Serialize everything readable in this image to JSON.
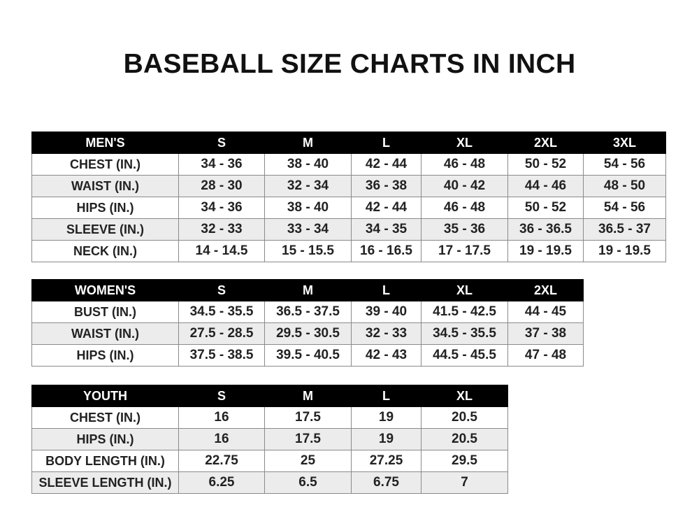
{
  "title": "BASEBALL SIZE CHARTS IN INCH",
  "tables": [
    {
      "headers": [
        "MEN'S",
        "S",
        "M",
        "L",
        "XL",
        "2XL",
        "3XL"
      ],
      "rows": [
        [
          "CHEST (IN.)",
          "34 - 36",
          "38 - 40",
          "42 - 44",
          "46 - 48",
          "50 - 52",
          "54 - 56"
        ],
        [
          "WAIST (IN.)",
          "28 - 30",
          "32 - 34",
          "36 - 38",
          "40 - 42",
          "44 - 46",
          "48 - 50"
        ],
        [
          "HIPS (IN.)",
          "34 - 36",
          "38 - 40",
          "42 - 44",
          "46 - 48",
          "50 - 52",
          "54 - 56"
        ],
        [
          "SLEEVE (IN.)",
          "32 - 33",
          "33 - 34",
          "34 - 35",
          "35 - 36",
          "36 - 36.5",
          "36.5 - 37"
        ],
        [
          "NECK (IN.)",
          "14 - 14.5",
          "15 - 15.5",
          "16 - 16.5",
          "17 - 17.5",
          "19 - 19.5",
          "19 - 19.5"
        ]
      ]
    },
    {
      "headers": [
        "WOMEN'S",
        "S",
        "M",
        "L",
        "XL",
        "2XL"
      ],
      "rows": [
        [
          "BUST (IN.)",
          "34.5 - 35.5",
          "36.5 - 37.5",
          "39 - 40",
          "41.5 - 42.5",
          "44 - 45"
        ],
        [
          "WAIST (IN.)",
          "27.5 - 28.5",
          "29.5 - 30.5",
          "32 - 33",
          "34.5 - 35.5",
          "37 - 38"
        ],
        [
          "HIPS (IN.)",
          "37.5 - 38.5",
          "39.5 - 40.5",
          "42 - 43",
          "44.5 - 45.5",
          "47 - 48"
        ]
      ]
    },
    {
      "headers": [
        "YOUTH",
        "S",
        "M",
        "L",
        "XL"
      ],
      "rows": [
        [
          "CHEST (IN.)",
          "16",
          "17.5",
          "19",
          "20.5"
        ],
        [
          "HIPS (IN.)",
          "16",
          "17.5",
          "19",
          "20.5"
        ],
        [
          "BODY LENGTH (IN.)",
          "22.75",
          "25",
          "27.25",
          "29.5"
        ],
        [
          "SLEEVE LENGTH (IN.)",
          "6.25",
          "6.5",
          "6.75",
          "7"
        ]
      ]
    }
  ]
}
